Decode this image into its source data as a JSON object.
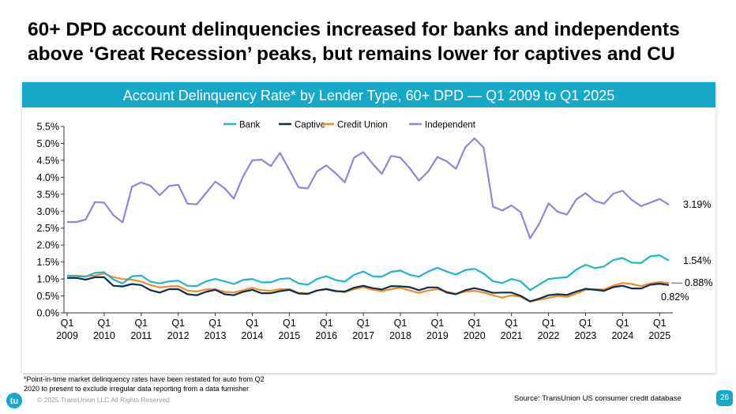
{
  "page": {
    "title_line1": "60+ DPD account delinquencies increased for banks and independents",
    "title_line2": "above ‘Great Recession’ peaks, but remains lower for captives and CU",
    "footnote_line1": "*Point-in-time market delinquency rates have been restated for auto from Q2",
    "footnote_line2": "2020 to present to exclude irregular data reporting from a data furnisher",
    "copyright": "© 2025 TransUnion LLC All Rights Reserved",
    "source": "Source: TransUnion US consumer credit database",
    "page_number": "26",
    "logo_text": "tu",
    "accent_color": "#16a8c9"
  },
  "chart_data": {
    "type": "line",
    "title": "Account Delinquency Rate* by Lender Type, 60+ DPD — Q1 2009 to Q1 2025",
    "xlabel": "",
    "ylabel": "",
    "ylim": [
      0,
      5.5
    ],
    "y_ticks": [
      "0.0%",
      "0.5%",
      "1.0%",
      "1.5%",
      "2.0%",
      "2.5%",
      "3.0%",
      "3.5%",
      "4.0%",
      "4.5%",
      "5.0%",
      "5.5%"
    ],
    "x_tick_labels": [
      {
        "q": "Q1",
        "year": "2009"
      },
      {
        "q": "Q1",
        "year": "2010"
      },
      {
        "q": "Q1",
        "year": "2011"
      },
      {
        "q": "Q1",
        "year": "2012"
      },
      {
        "q": "Q1",
        "year": "2013"
      },
      {
        "q": "Q1",
        "year": "2014"
      },
      {
        "q": "Q1",
        "year": "2015"
      },
      {
        "q": "Q1",
        "year": "2016"
      },
      {
        "q": "Q1",
        "year": "2017"
      },
      {
        "q": "Q1",
        "year": "2018"
      },
      {
        "q": "Q1",
        "year": "2019"
      },
      {
        "q": "Q1",
        "year": "2020"
      },
      {
        "q": "Q1",
        "year": "2021"
      },
      {
        "q": "Q1",
        "year": "2022"
      },
      {
        "q": "Q1",
        "year": "2023"
      },
      {
        "q": "Q1",
        "year": "2024"
      },
      {
        "q": "Q1",
        "year": "2025"
      }
    ],
    "legend_position": "top",
    "grid": false,
    "series": [
      {
        "name": "Bank",
        "color": "#1fb4cc",
        "end_label": "1.54%",
        "values": [
          1.09,
          1.08,
          1.07,
          1.18,
          1.2,
          0.98,
          0.87,
          1.08,
          1.1,
          0.92,
          0.87,
          0.93,
          0.95,
          0.8,
          0.79,
          0.93,
          1.0,
          0.93,
          0.85,
          0.97,
          1.0,
          0.9,
          0.9,
          1.0,
          1.02,
          0.87,
          0.83,
          1.0,
          1.08,
          0.97,
          0.92,
          1.12,
          1.22,
          1.08,
          1.07,
          1.21,
          1.25,
          1.12,
          1.07,
          1.22,
          1.33,
          1.22,
          1.13,
          1.26,
          1.3,
          1.16,
          0.93,
          0.88,
          1.0,
          0.93,
          0.67,
          0.84,
          1.0,
          1.03,
          1.05,
          1.28,
          1.42,
          1.32,
          1.37,
          1.56,
          1.62,
          1.48,
          1.47,
          1.67,
          1.7,
          1.54
        ]
      },
      {
        "name": "Captive",
        "color": "#0b2e4f",
        "end_label": "0.82%",
        "values": [
          1.03,
          1.03,
          0.98,
          1.05,
          1.05,
          0.8,
          0.78,
          0.85,
          0.82,
          0.67,
          0.6,
          0.7,
          0.7,
          0.55,
          0.52,
          0.62,
          0.68,
          0.55,
          0.52,
          0.62,
          0.68,
          0.58,
          0.58,
          0.64,
          0.68,
          0.57,
          0.56,
          0.66,
          0.7,
          0.64,
          0.63,
          0.74,
          0.8,
          0.73,
          0.69,
          0.79,
          0.78,
          0.76,
          0.67,
          0.75,
          0.75,
          0.6,
          0.55,
          0.67,
          0.73,
          0.67,
          0.59,
          0.6,
          0.6,
          0.5,
          0.34,
          0.42,
          0.52,
          0.55,
          0.53,
          0.63,
          0.71,
          0.68,
          0.65,
          0.76,
          0.8,
          0.72,
          0.72,
          0.83,
          0.86,
          0.82
        ]
      },
      {
        "name": "Credit Union",
        "color": "#f28c28",
        "end_label": "0.88%",
        "values": [
          1.1,
          1.1,
          1.08,
          1.1,
          1.16,
          1.05,
          1.0,
          0.98,
          0.92,
          0.82,
          0.75,
          0.78,
          0.79,
          0.66,
          0.63,
          0.69,
          0.7,
          0.62,
          0.6,
          0.67,
          0.74,
          0.67,
          0.65,
          0.7,
          0.7,
          0.59,
          0.57,
          0.66,
          0.71,
          0.65,
          0.61,
          0.7,
          0.76,
          0.68,
          0.64,
          0.7,
          0.74,
          0.66,
          0.59,
          0.66,
          0.7,
          0.63,
          0.56,
          0.63,
          0.65,
          0.6,
          0.52,
          0.45,
          0.52,
          0.47,
          0.33,
          0.39,
          0.44,
          0.5,
          0.47,
          0.57,
          0.68,
          0.7,
          0.69,
          0.8,
          0.88,
          0.85,
          0.79,
          0.87,
          0.91,
          0.88
        ]
      },
      {
        "name": "Independent",
        "color": "#8b86e0",
        "end_label": "3.19%",
        "values": [
          2.68,
          2.68,
          2.75,
          3.27,
          3.25,
          2.88,
          2.67,
          3.72,
          3.85,
          3.75,
          3.47,
          3.74,
          3.78,
          3.22,
          3.2,
          3.53,
          3.87,
          3.68,
          3.37,
          4.02,
          4.5,
          4.52,
          4.33,
          4.72,
          4.22,
          3.7,
          3.67,
          4.17,
          4.35,
          4.12,
          3.85,
          4.58,
          4.74,
          4.4,
          4.1,
          4.63,
          4.58,
          4.27,
          3.9,
          4.17,
          4.6,
          4.47,
          4.25,
          4.88,
          5.15,
          4.87,
          3.13,
          3.02,
          3.17,
          2.97,
          2.2,
          2.63,
          3.23,
          2.98,
          2.9,
          3.35,
          3.53,
          3.3,
          3.22,
          3.52,
          3.6,
          3.33,
          3.15,
          3.25,
          3.36,
          3.19
        ]
      }
    ]
  }
}
